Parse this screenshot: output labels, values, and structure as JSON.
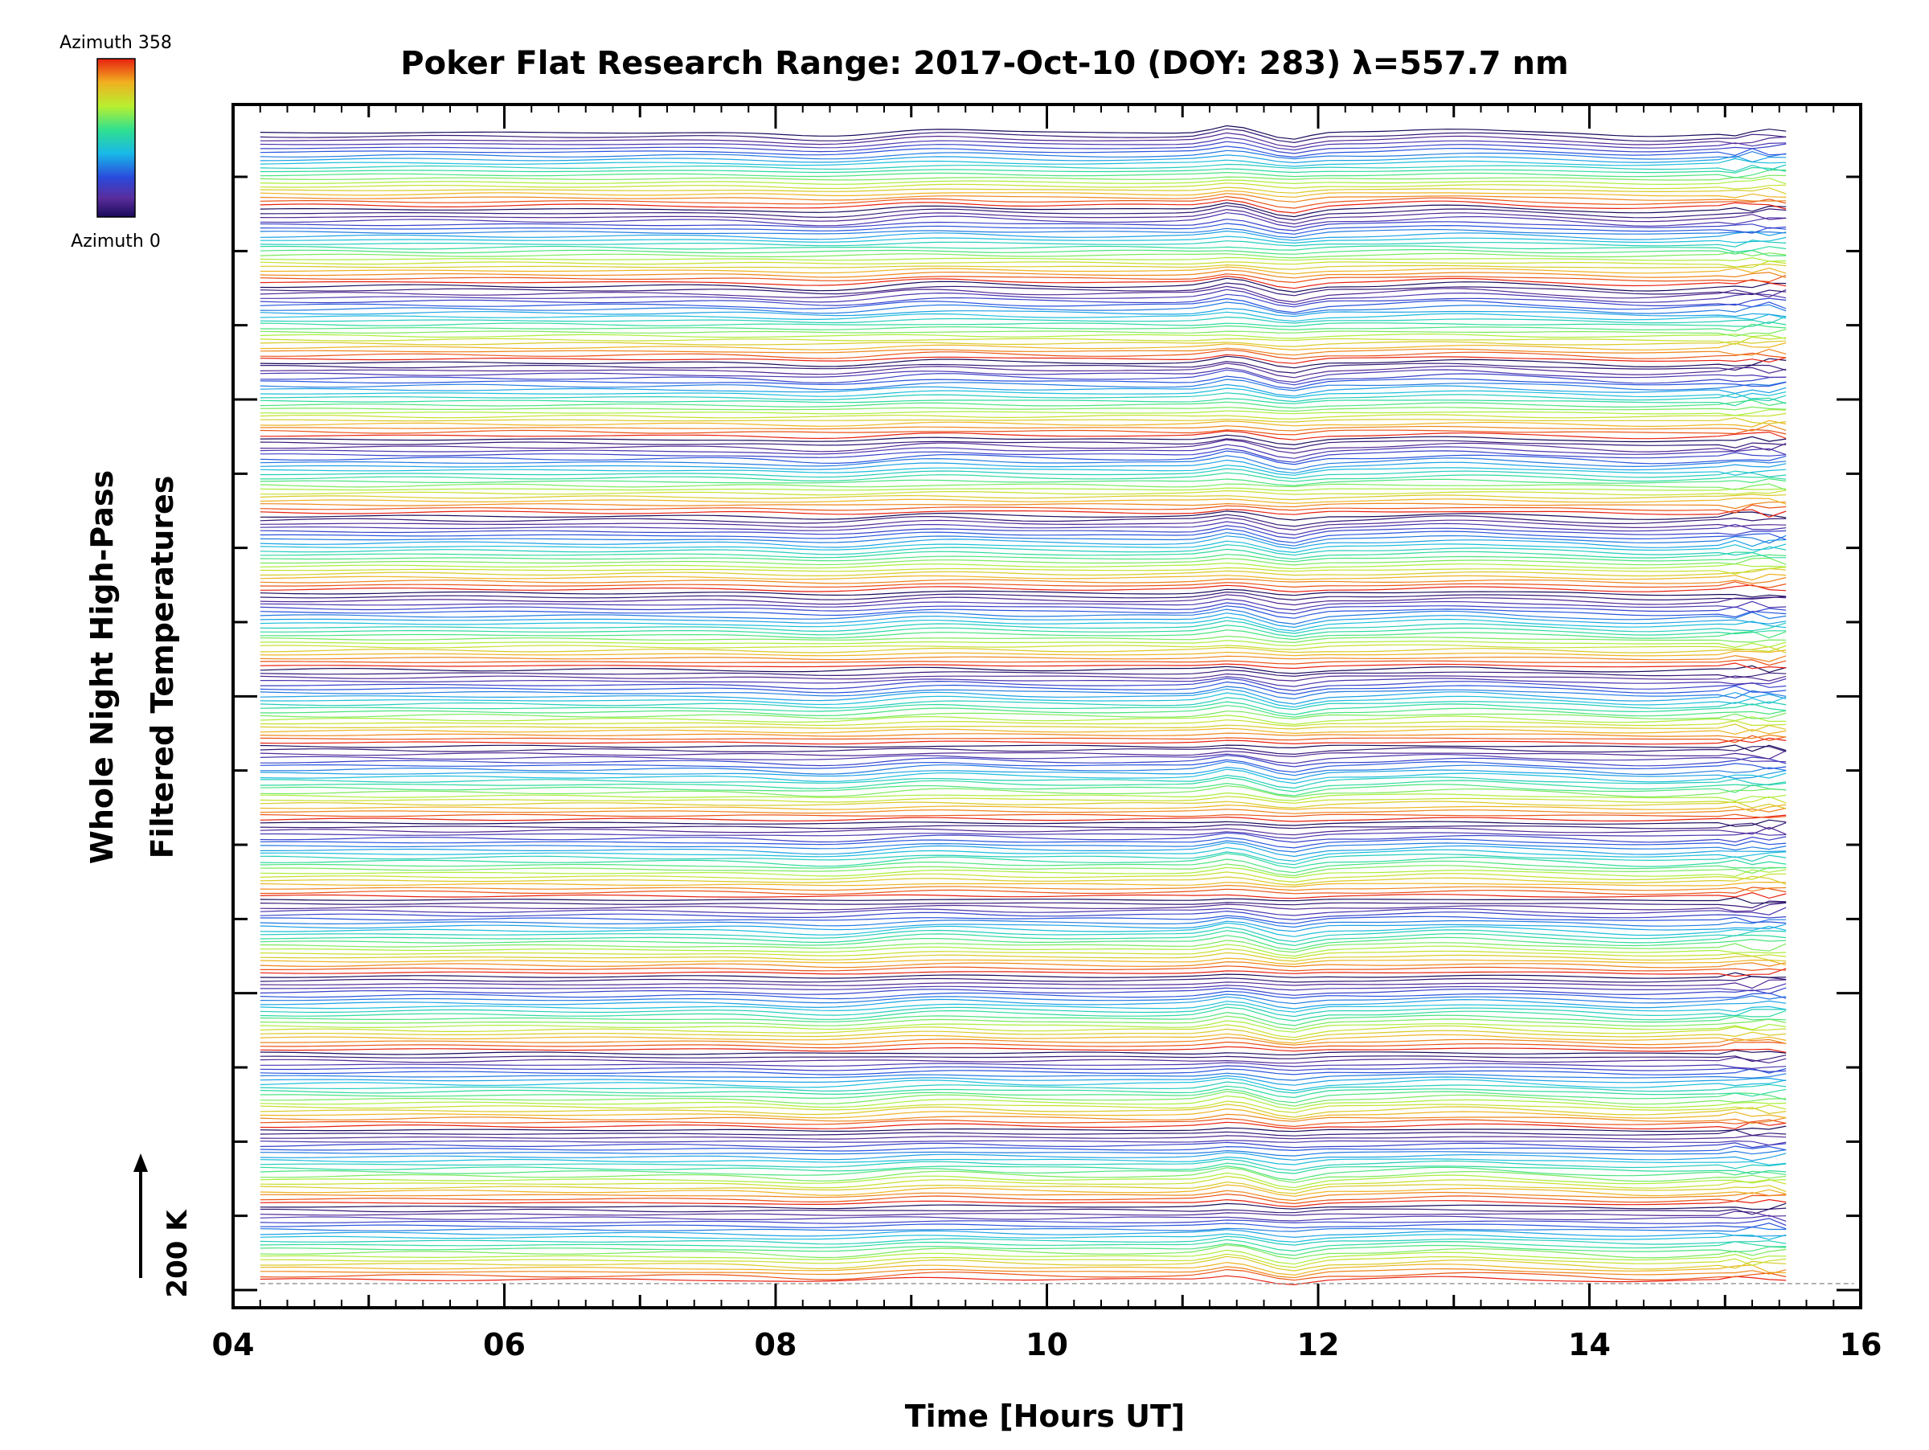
{
  "chart_data": {
    "type": "line",
    "title": "Poker Flat Research Range: 2017-Oct-10 (DOY: 283) λ=557.7 nm",
    "xlabel": "Time [Hours UT]",
    "ylabel": [
      "Whole Night High-Pass",
      "Filtered Temperatures"
    ],
    "xlim": [
      4,
      16
    ],
    "x_ticks": [
      "04",
      "06",
      "08",
      "10",
      "12",
      "14",
      "16"
    ],
    "x_start": 4.2,
    "x_end": 15.45,
    "scale_marker": "200 K",
    "colorbar": {
      "top_label": "Azimuth 358",
      "bottom_label": "Azimuth 0",
      "min": 0,
      "max": 358,
      "colormap": "rainbow (dark blue → purple → blue → cyan → green → yellow → orange → red)"
    },
    "series_description": "Stacked traces of filtered temperature vs time, one per azimuth sample, colored by azimuth; 15 repeating azimuth cycles from bottom to top.",
    "num_cycles": 15,
    "traces_per_cycle": 20,
    "features": [
      {
        "t": 8.4,
        "direction": "down"
      },
      {
        "t": 9.15,
        "direction": "up"
      },
      {
        "t": 11.35,
        "direction": "up"
      },
      {
        "t": 11.8,
        "direction": "down"
      },
      {
        "t": 13.0,
        "direction": "up"
      },
      {
        "t": 14.4,
        "direction": "down"
      }
    ]
  },
  "colors": {
    "axis": "#000000",
    "background": "#ffffff",
    "reference_line": "#999999"
  }
}
